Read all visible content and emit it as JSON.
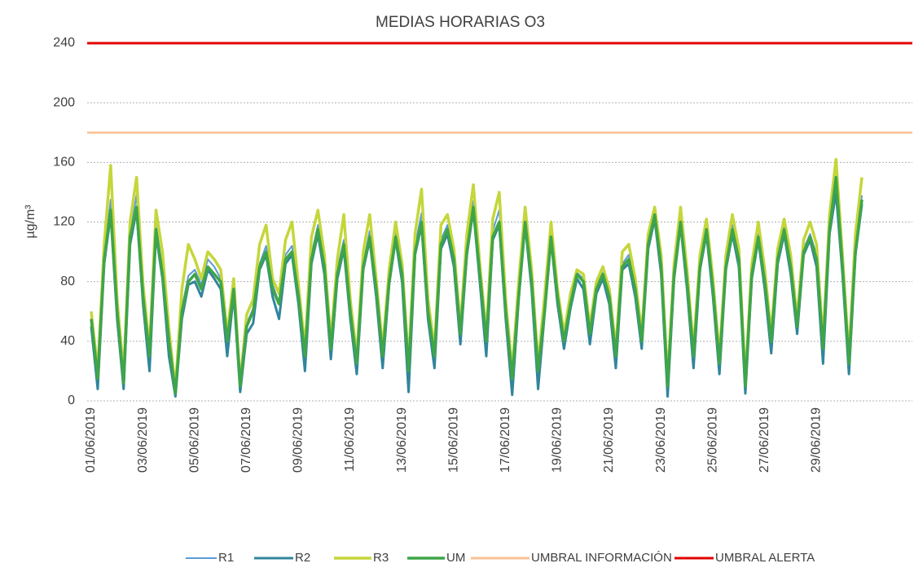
{
  "chart_data": {
    "type": "line",
    "title": "MEDIAS HORARIAS O3",
    "y_label": "µg/m³",
    "categories": [
      "01/06/2019",
      null,
      null,
      null,
      null,
      null,
      null,
      null,
      "03/06/2019",
      null,
      null,
      null,
      null,
      null,
      null,
      null,
      "05/06/2019",
      null,
      null,
      null,
      null,
      null,
      null,
      null,
      "07/06/2019",
      null,
      null,
      null,
      null,
      null,
      null,
      null,
      "09/06/2019",
      null,
      null,
      null,
      null,
      null,
      null,
      null,
      "11/06/2019",
      null,
      null,
      null,
      null,
      null,
      null,
      null,
      "13/06/2019",
      null,
      null,
      null,
      null,
      null,
      null,
      null,
      "15/06/2019",
      null,
      null,
      null,
      null,
      null,
      null,
      null,
      "17/06/2019",
      null,
      null,
      null,
      null,
      null,
      null,
      null,
      "19/06/2019",
      null,
      null,
      null,
      null,
      null,
      null,
      null,
      "21/06/2019",
      null,
      null,
      null,
      null,
      null,
      null,
      null,
      "23/06/2019",
      null,
      null,
      null,
      null,
      null,
      null,
      null,
      "25/06/2019",
      null,
      null,
      null,
      null,
      null,
      null,
      null,
      "27/06/2019",
      null,
      null,
      null,
      null,
      null,
      null,
      null,
      "29/06/2019",
      null,
      null,
      null,
      null,
      null,
      null,
      null
    ],
    "series": [
      {
        "name": "R1",
        "color": "#5b9bd5",
        "width": 2,
        "values": [
          58,
          12,
          98,
          135,
          62,
          10,
          112,
          138,
          72,
          28,
          118,
          88,
          38,
          4,
          62,
          84,
          88,
          78,
          95,
          90,
          82,
          38,
          78,
          8,
          52,
          62,
          92,
          104,
          78,
          66,
          98,
          104,
          72,
          28,
          98,
          118,
          92,
          32,
          88,
          108,
          62,
          22,
          92,
          114,
          78,
          28,
          82,
          114,
          88,
          18,
          104,
          126,
          62,
          28,
          108,
          118,
          98,
          42,
          104,
          134,
          88,
          38,
          114,
          128,
          62,
          10,
          72,
          126,
          82,
          18,
          62,
          112,
          72,
          38,
          68,
          86,
          82,
          42,
          78,
          86,
          72,
          28,
          92,
          98,
          78,
          38,
          108,
          128,
          92,
          8,
          88,
          124,
          82,
          28,
          92,
          118,
          78,
          22,
          92,
          118,
          98,
          8,
          88,
          112,
          82,
          38,
          98,
          118,
          92,
          48,
          102,
          112,
          98,
          32,
          118,
          145,
          92,
          22,
          102,
          138
        ]
      },
      {
        "name": "R2",
        "color": "#31859c",
        "width": 3,
        "values": [
          50,
          8,
          92,
          125,
          55,
          8,
          105,
          128,
          65,
          20,
          112,
          82,
          30,
          3,
          55,
          78,
          80,
          70,
          88,
          82,
          75,
          30,
          72,
          6,
          45,
          52,
          88,
          98,
          70,
          55,
          92,
          98,
          65,
          20,
          92,
          112,
          85,
          28,
          82,
          102,
          55,
          18,
          88,
          108,
          70,
          22,
          78,
          108,
          80,
          6,
          98,
          118,
          55,
          22,
          102,
          112,
          90,
          38,
          98,
          128,
          80,
          30,
          108,
          118,
          55,
          4,
          68,
          118,
          75,
          8,
          58,
          108,
          65,
          35,
          62,
          82,
          75,
          38,
          72,
          82,
          65,
          22,
          88,
          92,
          70,
          35,
          102,
          122,
          85,
          3,
          82,
          118,
          75,
          22,
          88,
          112,
          70,
          18,
          88,
          112,
          90,
          5,
          82,
          108,
          75,
          32,
          92,
          112,
          85,
          45,
          98,
          108,
          90,
          25,
          112,
          140,
          85,
          18,
          98,
          132
        ]
      },
      {
        "name": "R3",
        "color": "#c5d63a",
        "width": 3.5,
        "values": [
          60,
          20,
          105,
          158,
          68,
          18,
          120,
          150,
          78,
          35,
          128,
          100,
          48,
          8,
          75,
          105,
          95,
          82,
          100,
          95,
          88,
          45,
          82,
          12,
          58,
          68,
          105,
          118,
          82,
          72,
          108,
          120,
          78,
          35,
          110,
          128,
          98,
          40,
          95,
          125,
          68,
          30,
          100,
          125,
          82,
          35,
          88,
          120,
          92,
          25,
          112,
          142,
          68,
          35,
          118,
          125,
          102,
          50,
          112,
          145,
          92,
          45,
          122,
          140,
          68,
          20,
          80,
          130,
          88,
          25,
          70,
          120,
          75,
          45,
          72,
          88,
          85,
          50,
          80,
          90,
          75,
          35,
          100,
          105,
          82,
          45,
          112,
          130,
          98,
          15,
          92,
          130,
          88,
          35,
          98,
          122,
          82,
          30,
          98,
          125,
          102,
          15,
          92,
          120,
          88,
          45,
          102,
          122,
          98,
          55,
          108,
          120,
          105,
          40,
          125,
          162,
          98,
          30,
          112,
          150
        ]
      },
      {
        "name": "UM",
        "color": "#3fa548",
        "width": 3.5,
        "values": [
          55,
          15,
          95,
          128,
          60,
          12,
          110,
          130,
          70,
          30,
          115,
          85,
          40,
          5,
          60,
          80,
          85,
          75,
          90,
          85,
          80,
          40,
          75,
          10,
          50,
          60,
          90,
          100,
          75,
          65,
          95,
          100,
          70,
          30,
          95,
          115,
          90,
          35,
          85,
          105,
          60,
          25,
          90,
          110,
          75,
          30,
          80,
          110,
          85,
          20,
          100,
          120,
          60,
          30,
          105,
          115,
          95,
          45,
          100,
          130,
          85,
          40,
          110,
          120,
          60,
          15,
          70,
          120,
          80,
          20,
          60,
          110,
          70,
          40,
          65,
          85,
          80,
          45,
          75,
          85,
          70,
          30,
          90,
          95,
          75,
          40,
          105,
          125,
          90,
          10,
          85,
          120,
          80,
          30,
          90,
          115,
          75,
          25,
          90,
          115,
          95,
          10,
          85,
          110,
          80,
          40,
          95,
          115,
          90,
          50,
          100,
          110,
          95,
          35,
          115,
          150,
          90,
          25,
          100,
          135
        ]
      }
    ],
    "reference_lines": [
      {
        "name": "UMBRAL INFORMACIÓN",
        "color": "#f8c196",
        "value": 180
      },
      {
        "name": "UMBRAL ALERTA",
        "color": "#e00000",
        "value": 240
      }
    ],
    "ylim": [
      0,
      240
    ],
    "yticks": [
      0,
      40,
      80,
      120,
      160,
      200,
      240
    ],
    "grid": true
  }
}
